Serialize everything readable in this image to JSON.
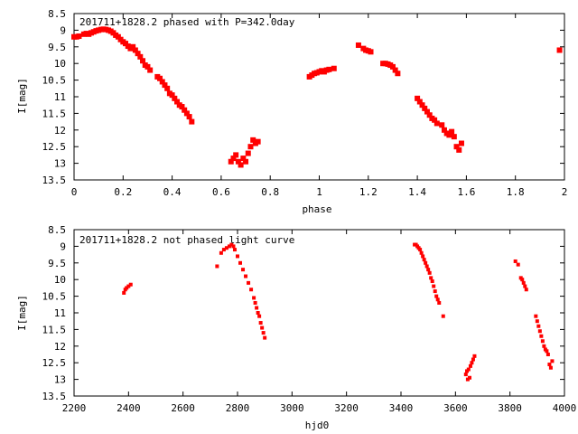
{
  "chart_data": [
    {
      "type": "scatter",
      "title": "201711+1828.2 phased with P=342.0day",
      "xlabel": "phase",
      "ylabel": "I[mag]",
      "xlim": [
        0,
        2
      ],
      "ylim": [
        13.5,
        8.5
      ],
      "y_inverted": true,
      "grid": false,
      "legend": "none",
      "marker_color": "#ff0000",
      "x_ticks": [
        {
          "value": 0,
          "label": "0"
        },
        {
          "value": 0.2,
          "label": "0.2"
        },
        {
          "value": 0.4,
          "label": "0.4"
        },
        {
          "value": 0.6,
          "label": "0.6"
        },
        {
          "value": 0.8,
          "label": "0.8"
        },
        {
          "value": 1,
          "label": "1"
        },
        {
          "value": 1.2,
          "label": "1.2"
        },
        {
          "value": 1.4,
          "label": "1.4"
        },
        {
          "value": 1.6,
          "label": "1.6"
        },
        {
          "value": 1.8,
          "label": "1.8"
        },
        {
          "value": 2,
          "label": "2"
        }
      ],
      "y_ticks": [
        {
          "value": 8.5,
          "label": "8.5"
        },
        {
          "value": 9,
          "label": "9"
        },
        {
          "value": 9.5,
          "label": "9.5"
        },
        {
          "value": 10,
          "label": "10"
        },
        {
          "value": 10.5,
          "label": "10.5"
        },
        {
          "value": 11,
          "label": "11"
        },
        {
          "value": 11.5,
          "label": "11.5"
        },
        {
          "value": 12,
          "label": "12"
        },
        {
          "value": 12.5,
          "label": "12.5"
        },
        {
          "value": 13,
          "label": "13"
        },
        {
          "value": 13.5,
          "label": "13.5"
        }
      ],
      "points": [
        [
          0.0,
          9.2
        ],
        [
          0.01,
          9.2
        ],
        [
          0.02,
          9.18
        ],
        [
          0.04,
          9.12
        ],
        [
          0.05,
          9.1
        ],
        [
          0.06,
          9.12
        ],
        [
          0.07,
          9.08
        ],
        [
          0.08,
          9.05
        ],
        [
          0.09,
          9.02
        ],
        [
          0.1,
          9.0
        ],
        [
          0.11,
          8.98
        ],
        [
          0.12,
          8.97
        ],
        [
          0.13,
          8.98
        ],
        [
          0.14,
          9.0
        ],
        [
          0.15,
          9.03
        ],
        [
          0.16,
          9.08
        ],
        [
          0.17,
          9.15
        ],
        [
          0.18,
          9.2
        ],
        [
          0.19,
          9.28
        ],
        [
          0.2,
          9.35
        ],
        [
          0.21,
          9.4
        ],
        [
          0.22,
          9.48
        ],
        [
          0.23,
          9.55
        ],
        [
          0.24,
          9.5
        ],
        [
          0.25,
          9.6
        ],
        [
          0.26,
          9.7
        ],
        [
          0.27,
          9.8
        ],
        [
          0.28,
          9.92
        ],
        [
          0.29,
          10.05
        ],
        [
          0.3,
          10.1
        ],
        [
          0.31,
          10.2
        ],
        [
          0.34,
          10.4
        ],
        [
          0.35,
          10.45
        ],
        [
          0.36,
          10.55
        ],
        [
          0.37,
          10.65
        ],
        [
          0.38,
          10.75
        ],
        [
          0.39,
          10.9
        ],
        [
          0.4,
          10.95
        ],
        [
          0.41,
          11.05
        ],
        [
          0.42,
          11.15
        ],
        [
          0.43,
          11.25
        ],
        [
          0.44,
          11.3
        ],
        [
          0.45,
          11.4
        ],
        [
          0.46,
          11.5
        ],
        [
          0.47,
          11.6
        ],
        [
          0.48,
          11.75
        ],
        [
          0.64,
          12.95
        ],
        [
          0.65,
          12.85
        ],
        [
          0.66,
          12.75
        ],
        [
          0.67,
          12.95
        ],
        [
          0.68,
          13.05
        ],
        [
          0.69,
          12.85
        ],
        [
          0.7,
          12.95
        ],
        [
          0.71,
          12.7
        ],
        [
          0.72,
          12.5
        ],
        [
          0.73,
          12.3
        ],
        [
          0.74,
          12.4
        ],
        [
          0.75,
          12.35
        ],
        [
          0.96,
          10.4
        ],
        [
          0.97,
          10.35
        ],
        [
          0.98,
          10.3
        ],
        [
          0.99,
          10.28
        ],
        [
          1.0,
          10.25
        ],
        [
          1.01,
          10.22
        ],
        [
          1.02,
          10.25
        ],
        [
          1.03,
          10.2
        ],
        [
          1.04,
          10.18
        ],
        [
          1.06,
          10.15
        ],
        [
          1.16,
          9.45
        ],
        [
          1.18,
          9.55
        ],
        [
          1.19,
          9.6
        ],
        [
          1.2,
          9.62
        ],
        [
          1.21,
          9.65
        ],
        [
          1.26,
          10.0
        ],
        [
          1.27,
          10.0
        ],
        [
          1.28,
          10.02
        ],
        [
          1.29,
          10.05
        ],
        [
          1.3,
          10.1
        ],
        [
          1.31,
          10.2
        ],
        [
          1.32,
          10.3
        ],
        [
          1.4,
          11.05
        ],
        [
          1.41,
          11.15
        ],
        [
          1.42,
          11.25
        ],
        [
          1.43,
          11.35
        ],
        [
          1.44,
          11.45
        ],
        [
          1.45,
          11.55
        ],
        [
          1.46,
          11.65
        ],
        [
          1.47,
          11.7
        ],
        [
          1.48,
          11.8
        ],
        [
          1.5,
          11.85
        ],
        [
          1.51,
          12.0
        ],
        [
          1.52,
          12.1
        ],
        [
          1.53,
          12.15
        ],
        [
          1.54,
          12.05
        ],
        [
          1.55,
          12.2
        ],
        [
          1.56,
          12.5
        ],
        [
          1.57,
          12.6
        ],
        [
          1.58,
          12.4
        ],
        [
          1.98,
          9.6
        ]
      ]
    },
    {
      "type": "scatter",
      "title": "201711+1828.2 not phased light curve",
      "xlabel": "hjd0",
      "ylabel": "I[mag]",
      "xlim": [
        2200,
        4000
      ],
      "ylim": [
        13.5,
        8.5
      ],
      "y_inverted": true,
      "grid": false,
      "legend": "none",
      "marker_color": "#ff0000",
      "x_ticks": [
        {
          "value": 2200,
          "label": "2200"
        },
        {
          "value": 2400,
          "label": "2400"
        },
        {
          "value": 2600,
          "label": "2600"
        },
        {
          "value": 2800,
          "label": "2800"
        },
        {
          "value": 3000,
          "label": "3000"
        },
        {
          "value": 3200,
          "label": "3200"
        },
        {
          "value": 3400,
          "label": "3400"
        },
        {
          "value": 3600,
          "label": "3600"
        },
        {
          "value": 3800,
          "label": "3800"
        },
        {
          "value": 4000,
          "label": "4000"
        }
      ],
      "y_ticks": [
        {
          "value": 8.5,
          "label": "8.5"
        },
        {
          "value": 9,
          "label": "9"
        },
        {
          "value": 9.5,
          "label": "9.5"
        },
        {
          "value": 10,
          "label": "10"
        },
        {
          "value": 10.5,
          "label": "10.5"
        },
        {
          "value": 11,
          "label": "11"
        },
        {
          "value": 11.5,
          "label": "11.5"
        },
        {
          "value": 12,
          "label": "12"
        },
        {
          "value": 12.5,
          "label": "12.5"
        },
        {
          "value": 13,
          "label": "13"
        },
        {
          "value": 13.5,
          "label": "13.5"
        }
      ],
      "points": [
        [
          2383,
          10.4
        ],
        [
          2388,
          10.3
        ],
        [
          2393,
          10.25
        ],
        [
          2400,
          10.2
        ],
        [
          2408,
          10.15
        ],
        [
          2725,
          9.6
        ],
        [
          2740,
          9.2
        ],
        [
          2750,
          9.1
        ],
        [
          2760,
          9.05
        ],
        [
          2770,
          9.0
        ],
        [
          2778,
          8.95
        ],
        [
          2785,
          9.0
        ],
        [
          2790,
          9.1
        ],
        [
          2800,
          9.3
        ],
        [
          2810,
          9.5
        ],
        [
          2820,
          9.7
        ],
        [
          2830,
          9.9
        ],
        [
          2840,
          10.1
        ],
        [
          2850,
          10.3
        ],
        [
          2860,
          10.55
        ],
        [
          2865,
          10.7
        ],
        [
          2870,
          10.85
        ],
        [
          2875,
          11.0
        ],
        [
          2880,
          11.1
        ],
        [
          2885,
          11.3
        ],
        [
          2890,
          11.45
        ],
        [
          2895,
          11.6
        ],
        [
          2900,
          11.75
        ],
        [
          3450,
          8.95
        ],
        [
          3455,
          8.95
        ],
        [
          3460,
          9.0
        ],
        [
          3465,
          9.05
        ],
        [
          3470,
          9.1
        ],
        [
          3475,
          9.2
        ],
        [
          3480,
          9.3
        ],
        [
          3485,
          9.4
        ],
        [
          3490,
          9.5
        ],
        [
          3495,
          9.6
        ],
        [
          3500,
          9.7
        ],
        [
          3505,
          9.8
        ],
        [
          3510,
          9.95
        ],
        [
          3515,
          10.05
        ],
        [
          3520,
          10.2
        ],
        [
          3525,
          10.35
        ],
        [
          3530,
          10.5
        ],
        [
          3535,
          10.6
        ],
        [
          3540,
          10.7
        ],
        [
          3555,
          11.1
        ],
        [
          3638,
          12.85
        ],
        [
          3642,
          12.75
        ],
        [
          3645,
          13.0
        ],
        [
          3648,
          12.7
        ],
        [
          3652,
          12.95
        ],
        [
          3655,
          12.6
        ],
        [
          3660,
          12.5
        ],
        [
          3665,
          12.4
        ],
        [
          3670,
          12.3
        ],
        [
          3820,
          9.45
        ],
        [
          3830,
          9.55
        ],
        [
          3840,
          9.95
        ],
        [
          3845,
          10.0
        ],
        [
          3850,
          10.1
        ],
        [
          3855,
          10.2
        ],
        [
          3860,
          10.3
        ],
        [
          3895,
          11.1
        ],
        [
          3900,
          11.25
        ],
        [
          3905,
          11.4
        ],
        [
          3910,
          11.55
        ],
        [
          3915,
          11.7
        ],
        [
          3920,
          11.85
        ],
        [
          3925,
          12.0
        ],
        [
          3930,
          12.1
        ],
        [
          3935,
          12.15
        ],
        [
          3940,
          12.25
        ],
        [
          3945,
          12.55
        ],
        [
          3950,
          12.65
        ],
        [
          3955,
          12.45
        ]
      ]
    }
  ]
}
